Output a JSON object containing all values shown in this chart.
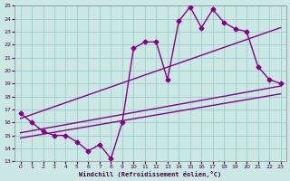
{
  "xlabel": "Windchill (Refroidissement éolien,°C)",
  "bg_color": "#cce8e4",
  "line_color": "#880088",
  "grid_color": "#99cccc",
  "xlim": [
    -0.5,
    23.5
  ],
  "ylim": [
    13,
    25
  ],
  "xticks": [
    0,
    1,
    2,
    3,
    4,
    5,
    6,
    7,
    8,
    9,
    10,
    11,
    12,
    13,
    14,
    15,
    16,
    17,
    18,
    19,
    20,
    21,
    22,
    23
  ],
  "yticks": [
    13,
    14,
    15,
    16,
    17,
    18,
    19,
    20,
    21,
    22,
    23,
    24,
    25
  ],
  "main_line_x": [
    0,
    1,
    2,
    3,
    4,
    5,
    6,
    7,
    8,
    9,
    10,
    11,
    12,
    13,
    14,
    15,
    16,
    17,
    18,
    19,
    20,
    21,
    22,
    23
  ],
  "main_line_y": [
    16.7,
    16.0,
    15.3,
    15.0,
    15.0,
    14.5,
    13.8,
    14.3,
    13.2,
    16.0,
    21.7,
    22.2,
    22.2,
    19.3,
    23.8,
    24.9,
    23.3,
    24.7,
    23.7,
    23.2,
    23.0,
    20.3,
    19.3,
    19.0
  ],
  "line2_x": [
    0,
    23
  ],
  "line2_y": [
    16.3,
    23.3
  ],
  "line3_x": [
    0,
    23
  ],
  "line3_y": [
    15.2,
    18.8
  ],
  "line4_x": [
    0,
    23
  ],
  "line4_y": [
    14.8,
    18.2
  ],
  "marker": "D",
  "markersize": 2.5,
  "linewidth": 1.0
}
